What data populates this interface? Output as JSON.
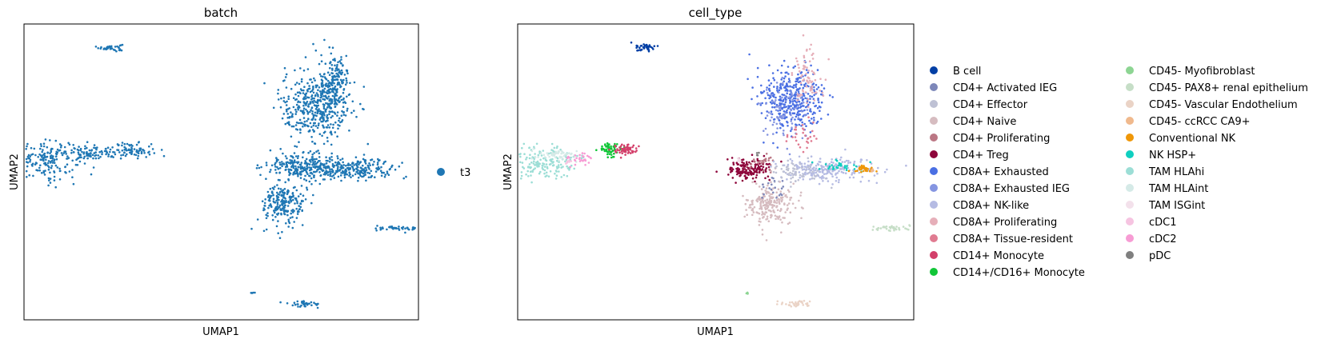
{
  "chart_data": [
    {
      "type": "scatter",
      "title": "batch",
      "xlabel": "UMAP1",
      "ylabel": "UMAP2",
      "xticks": [],
      "yticks": [],
      "legend_position": "right",
      "legend": [
        {
          "label": "t3",
          "color": "#1f77b4"
        }
      ],
      "clusters": [
        {
          "category": "t3",
          "x": 2.2,
          "y": 9.2,
          "sx": 0.15,
          "sy": 0.06,
          "n": 40
        },
        {
          "category": "t3",
          "x": 0.6,
          "y": 5.4,
          "sx": 0.45,
          "sy": 0.3,
          "n": 180
        },
        {
          "category": "t3",
          "x": 1.8,
          "y": 5.65,
          "sx": 0.35,
          "sy": 0.12,
          "n": 90
        },
        {
          "category": "t3",
          "x": 2.8,
          "y": 5.75,
          "sx": 0.25,
          "sy": 0.12,
          "n": 70
        },
        {
          "category": "t3",
          "x": 7.4,
          "y": 7.2,
          "sx": 0.45,
          "sy": 0.6,
          "n": 420
        },
        {
          "category": "t3",
          "x": 7.9,
          "y": 8.0,
          "sx": 0.18,
          "sy": 0.5,
          "n": 160
        },
        {
          "category": "t3",
          "x": 7.1,
          "y": 5.2,
          "sx": 0.5,
          "sy": 0.22,
          "n": 260
        },
        {
          "category": "t3",
          "x": 8.4,
          "y": 5.1,
          "sx": 0.55,
          "sy": 0.16,
          "n": 220
        },
        {
          "category": "t3",
          "x": 6.6,
          "y": 3.9,
          "sx": 0.28,
          "sy": 0.35,
          "n": 220
        },
        {
          "category": "t3",
          "x": 9.5,
          "y": 3.1,
          "sx": 0.28,
          "sy": 0.05,
          "n": 40
        },
        {
          "category": "t3",
          "x": 7.1,
          "y": 0.55,
          "sx": 0.25,
          "sy": 0.05,
          "n": 40
        },
        {
          "category": "t3",
          "x": 5.8,
          "y": 0.9,
          "sx": 0.02,
          "sy": 0.02,
          "n": 5
        }
      ],
      "xlim": [
        0,
        10
      ],
      "ylim": [
        0,
        10
      ]
    },
    {
      "type": "scatter",
      "title": "cell_type",
      "xlabel": "UMAP1",
      "ylabel": "UMAP2",
      "xticks": [],
      "yticks": [],
      "legend_position": "right",
      "legend": [
        {
          "label": "B cell",
          "color": "#023fa5"
        },
        {
          "label": "CD4+ Activated IEG",
          "color": "#7d87b9"
        },
        {
          "label": "CD4+ Effector",
          "color": "#bec1d4"
        },
        {
          "label": "CD4+ Naive",
          "color": "#d6bcc0"
        },
        {
          "label": "CD4+ Proliferating",
          "color": "#bb7784"
        },
        {
          "label": "CD4+ Treg",
          "color": "#8e063b"
        },
        {
          "label": "CD8A+ Exhausted",
          "color": "#4a6fe3"
        },
        {
          "label": "CD8A+ Exhausted IEG",
          "color": "#8595e1"
        },
        {
          "label": "CD8A+ NK-like",
          "color": "#b5bbe3"
        },
        {
          "label": "CD8A+ Proliferating",
          "color": "#e6afb9"
        },
        {
          "label": "CD8A+ Tissue-resident",
          "color": "#e07b91"
        },
        {
          "label": "CD14+ Monocyte",
          "color": "#d33f6a"
        },
        {
          "label": "CD14+/CD16+ Monocyte",
          "color": "#11c638"
        },
        {
          "label": "CD45- Myofibroblast",
          "color": "#8dd593"
        },
        {
          "label": "CD45- PAX8+ renal epithelium",
          "color": "#c6dec7"
        },
        {
          "label": "CD45- Vascular Endothelium",
          "color": "#ead3c6"
        },
        {
          "label": "CD45- ccRCC CA9+",
          "color": "#f0b98d"
        },
        {
          "label": "Conventional NK",
          "color": "#ef9708"
        },
        {
          "label": "NK HSP+",
          "color": "#0fcfc0"
        },
        {
          "label": "TAM HLAhi",
          "color": "#9cded6"
        },
        {
          "label": "TAM HLAint",
          "color": "#d5eae7"
        },
        {
          "label": "TAM ISGint",
          "color": "#f3e1eb"
        },
        {
          "label": "cDC1",
          "color": "#f6c4e1"
        },
        {
          "label": "cDC2",
          "color": "#f79cd4"
        },
        {
          "label": "pDC",
          "color": "#7f7f7f"
        }
      ],
      "clusters": [
        {
          "category": "B cell",
          "x": 3.2,
          "y": 9.2,
          "sx": 0.15,
          "sy": 0.06,
          "n": 40
        },
        {
          "category": "TAM HLAhi",
          "x": 0.7,
          "y": 5.3,
          "sx": 0.4,
          "sy": 0.28,
          "n": 170
        },
        {
          "category": "TAM HLAint",
          "x": 1.0,
          "y": 5.6,
          "sx": 0.3,
          "sy": 0.1,
          "n": 50
        },
        {
          "category": "cDC2",
          "x": 1.6,
          "y": 5.45,
          "sx": 0.15,
          "sy": 0.1,
          "n": 30
        },
        {
          "category": "CD14+/CD16+ Monocyte",
          "x": 2.3,
          "y": 5.75,
          "sx": 0.12,
          "sy": 0.1,
          "n": 60
        },
        {
          "category": "CD14+ Monocyte",
          "x": 2.75,
          "y": 5.75,
          "sx": 0.15,
          "sy": 0.1,
          "n": 60
        },
        {
          "category": "CD8A+ Exhausted",
          "x": 6.9,
          "y": 7.4,
          "sx": 0.4,
          "sy": 0.55,
          "n": 380
        },
        {
          "category": "CD8A+ Exhausted IEG",
          "x": 6.7,
          "y": 7.0,
          "sx": 0.35,
          "sy": 0.5,
          "n": 80
        },
        {
          "category": "CD8A+ Proliferating",
          "x": 7.3,
          "y": 8.3,
          "sx": 0.2,
          "sy": 0.5,
          "n": 80
        },
        {
          "category": "CD8A+ Tissue-resident",
          "x": 7.2,
          "y": 6.2,
          "sx": 0.25,
          "sy": 0.25,
          "n": 30
        },
        {
          "category": "CD4+ Treg",
          "x": 5.8,
          "y": 5.1,
          "sx": 0.3,
          "sy": 0.18,
          "n": 160
        },
        {
          "category": "CD4+ Proliferating",
          "x": 6.2,
          "y": 5.3,
          "sx": 0.2,
          "sy": 0.15,
          "n": 25
        },
        {
          "category": "CD8A+ NK-like",
          "x": 7.8,
          "y": 5.1,
          "sx": 0.6,
          "sy": 0.2,
          "n": 220
        },
        {
          "category": "CD4+ Effector",
          "x": 7.0,
          "y": 5.0,
          "sx": 0.35,
          "sy": 0.2,
          "n": 60
        },
        {
          "category": "NK HSP+",
          "x": 8.2,
          "y": 5.2,
          "sx": 0.3,
          "sy": 0.08,
          "n": 30
        },
        {
          "category": "Conventional NK",
          "x": 8.75,
          "y": 5.1,
          "sx": 0.12,
          "sy": 0.06,
          "n": 35
        },
        {
          "category": "CD4+ Naive",
          "x": 6.4,
          "y": 3.9,
          "sx": 0.28,
          "sy": 0.35,
          "n": 220
        },
        {
          "category": "CD4+ Activated IEG",
          "x": 6.5,
          "y": 4.5,
          "sx": 0.2,
          "sy": 0.2,
          "n": 20
        },
        {
          "category": "CD45- PAX8+ renal epithelium",
          "x": 9.5,
          "y": 3.1,
          "sx": 0.28,
          "sy": 0.05,
          "n": 40
        },
        {
          "category": "CD45- Vascular Endothelium",
          "x": 7.1,
          "y": 0.55,
          "sx": 0.25,
          "sy": 0.05,
          "n": 40
        },
        {
          "category": "CD45- Myofibroblast",
          "x": 5.8,
          "y": 0.9,
          "sx": 0.02,
          "sy": 0.02,
          "n": 5
        },
        {
          "category": "TAM ISGint",
          "x": 5.6,
          "y": 5.4,
          "sx": 0.05,
          "sy": 0.05,
          "n": 8
        },
        {
          "category": "cDC1",
          "x": 1.3,
          "y": 5.3,
          "sx": 0.05,
          "sy": 0.05,
          "n": 6
        },
        {
          "category": "CD45- ccRCC CA9+",
          "x": 8.95,
          "y": 5.05,
          "sx": 0.03,
          "sy": 0.03,
          "n": 5
        },
        {
          "category": "pDC",
          "x": 6.1,
          "y": 5.6,
          "sx": 0.05,
          "sy": 0.05,
          "n": 4
        }
      ],
      "xlim": [
        0,
        10
      ],
      "ylim": [
        0,
        10
      ]
    }
  ]
}
